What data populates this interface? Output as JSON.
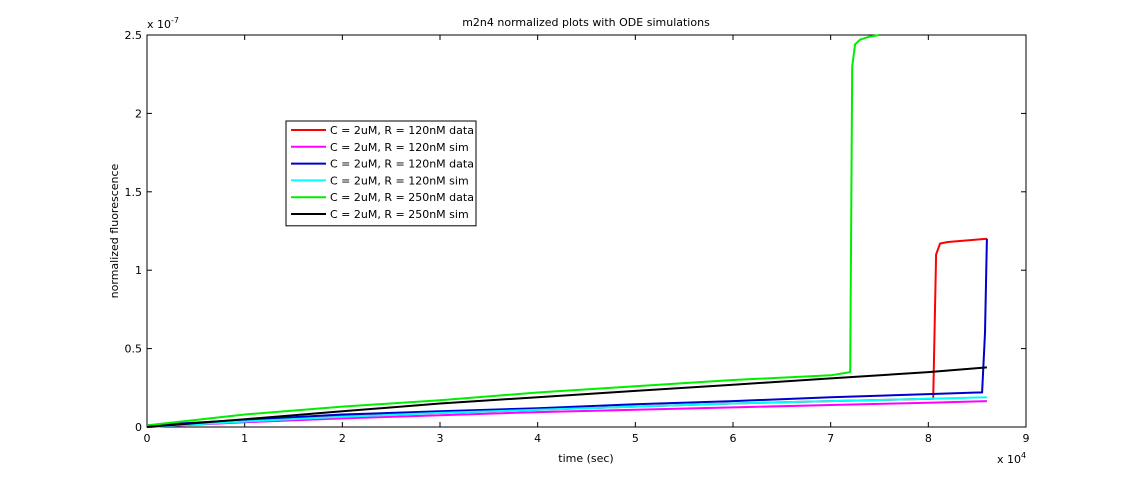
{
  "chart_data": {
    "type": "line",
    "title": "m2n4 normalized plots with ODE simulations",
    "xlabel": "time (sec)",
    "ylabel": "normalized fluorescence",
    "x_multiplier_base": "x 10",
    "x_multiplier_exp": "4",
    "y_multiplier_base": "x 10",
    "y_multiplier_exp": "-7",
    "xlim": [
      0,
      9
    ],
    "ylim": [
      0,
      2.5
    ],
    "x_ticks": [
      "0",
      "1",
      "2",
      "3",
      "4",
      "5",
      "6",
      "7",
      "8",
      "9"
    ],
    "y_ticks": [
      "0",
      "0.5",
      "1",
      "1.5",
      "2",
      "2.5"
    ],
    "grid": false,
    "legend_position": "upper-left inside",
    "series": [
      {
        "name": "C = 2uM, R = 120nM data",
        "color": "#ff0000",
        "x": [
          0,
          1,
          2,
          3,
          4,
          5,
          6,
          7,
          8.05,
          8.08,
          8.12,
          8.2,
          8.4,
          8.6
        ],
        "y": [
          0.01,
          0.04,
          0.07,
          0.09,
          0.11,
          0.13,
          0.15,
          0.165,
          0.18,
          1.1,
          1.17,
          1.18,
          1.19,
          1.2
        ]
      },
      {
        "name": "C = 2uM, R = 120nM sim",
        "color": "#ff00ff",
        "x": [
          0,
          1,
          2,
          3,
          4,
          5,
          6,
          7,
          8,
          8.6
        ],
        "y": [
          0.0,
          0.03,
          0.055,
          0.075,
          0.095,
          0.11,
          0.125,
          0.14,
          0.155,
          0.165
        ]
      },
      {
        "name": "C = 2uM, R = 120nM data",
        "color": "#0000cc",
        "x": [
          0,
          1,
          2,
          3,
          4,
          5,
          6,
          7,
          8,
          8.5,
          8.55,
          8.58,
          8.6
        ],
        "y": [
          0.01,
          0.045,
          0.08,
          0.1,
          0.12,
          0.145,
          0.165,
          0.19,
          0.21,
          0.22,
          0.22,
          0.6,
          1.2
        ]
      },
      {
        "name": "C = 2uM, R = 120nM sim",
        "color": "#00ffff",
        "x": [
          0,
          1,
          2,
          3,
          4,
          5,
          6,
          7,
          8,
          8.6
        ],
        "y": [
          0.0,
          0.035,
          0.065,
          0.09,
          0.11,
          0.13,
          0.15,
          0.165,
          0.18,
          0.19
        ]
      },
      {
        "name": "C = 2uM, R = 250nM data",
        "color": "#00ee00",
        "x": [
          0,
          1,
          2,
          3,
          4,
          5,
          6,
          7,
          7.2,
          7.22,
          7.25,
          7.3,
          7.4,
          7.5
        ],
        "y": [
          0.01,
          0.08,
          0.13,
          0.17,
          0.22,
          0.26,
          0.3,
          0.33,
          0.35,
          2.3,
          2.44,
          2.47,
          2.49,
          2.5
        ]
      },
      {
        "name": "C = 2uM, R = 250nM sim",
        "color": "#000000",
        "x": [
          0,
          1,
          2,
          3,
          4,
          5,
          6,
          7,
          8,
          8.6
        ],
        "y": [
          0.0,
          0.05,
          0.1,
          0.15,
          0.19,
          0.23,
          0.27,
          0.31,
          0.35,
          0.38
        ]
      }
    ]
  }
}
